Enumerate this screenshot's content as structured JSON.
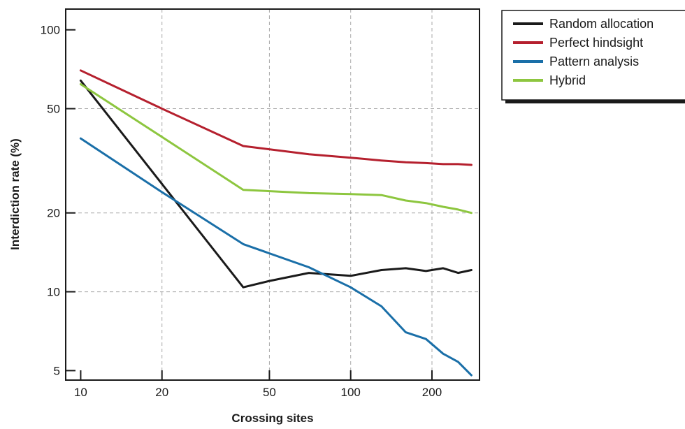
{
  "chart_data": {
    "type": "line",
    "xlabel": "Crossing sites",
    "ylabel": "Interdiction rate (%)",
    "x_scale": "log",
    "y_scale": "log",
    "xlim": [
      8.8,
      300
    ],
    "ylim": [
      4.6,
      120
    ],
    "x_ticks": [
      10,
      20,
      50,
      100,
      200
    ],
    "y_ticks": [
      5,
      10,
      20,
      50,
      100
    ],
    "legend_position": "outside-right-top",
    "series": [
      {
        "name": "Random allocation",
        "color": "#1a1a1a",
        "x": [
          10,
          40,
          50,
          70,
          100,
          130,
          160,
          190,
          220,
          250,
          280
        ],
        "y": [
          64,
          10.4,
          11,
          11.8,
          11.5,
          12.1,
          12.3,
          12.0,
          12.3,
          11.8,
          12.1
        ]
      },
      {
        "name": "Perfect hindsight",
        "color": "#b5202e",
        "x": [
          10,
          20,
          40,
          70,
          100,
          130,
          160,
          190,
          220,
          250,
          280
        ],
        "y": [
          70,
          50,
          36,
          33.5,
          32.5,
          31.7,
          31.2,
          31.0,
          30.7,
          30.7,
          30.5
        ]
      },
      {
        "name": "Pattern analysis",
        "color": "#1a6fa8",
        "x": [
          10,
          20,
          40,
          70,
          100,
          130,
          160,
          190,
          220,
          250,
          280
        ],
        "y": [
          38.5,
          24,
          15.2,
          12.4,
          10.4,
          8.8,
          7.0,
          6.6,
          5.8,
          5.4,
          4.8
        ]
      },
      {
        "name": "Hybrid",
        "color": "#8dc63f",
        "x": [
          10,
          20,
          40,
          70,
          100,
          130,
          160,
          190,
          220,
          250,
          280
        ],
        "y": [
          62,
          39,
          24.5,
          23.8,
          23.6,
          23.4,
          22.3,
          21.8,
          21.1,
          20.6,
          20.0
        ]
      }
    ]
  }
}
